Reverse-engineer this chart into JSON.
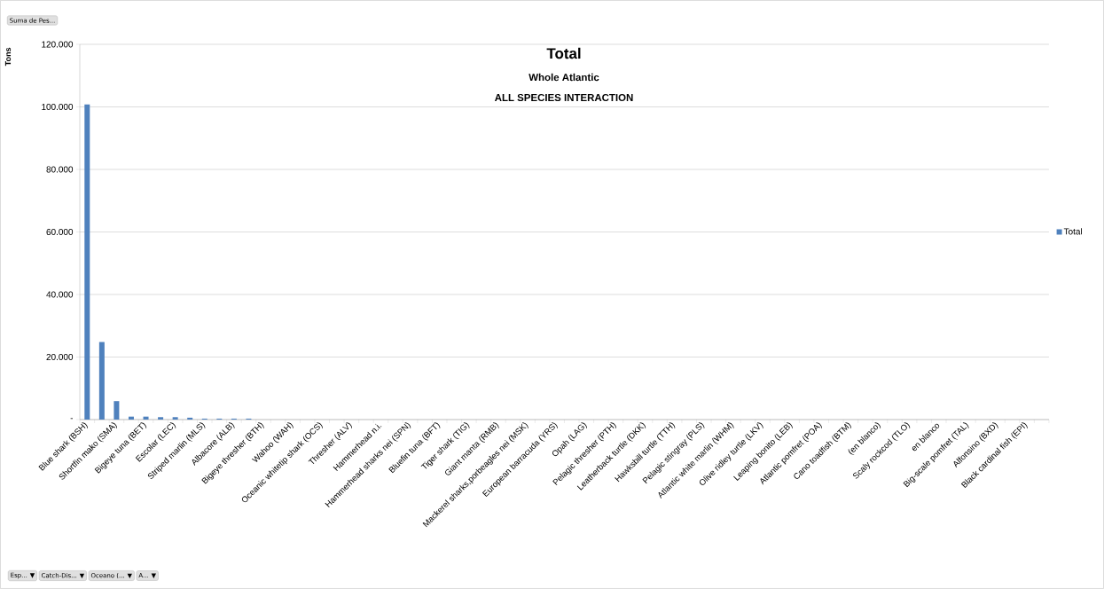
{
  "chart_data": {
    "type": "bar",
    "title": "Total",
    "subtitle": "Whole Atlantic",
    "ylabel": "Tons",
    "annotations": [
      "ALL SPECIES INTERACTION",
      "Suma de Pes...",
      "Esp... ▼",
      "Catch-Dis... ▼",
      "Oceano (... ▼",
      "A... ▼"
    ],
    "categories": [
      "Blue shark (BSH)",
      null,
      "Shortfin mako (SMA)",
      null,
      "Bigeye tuna (BET)",
      null,
      "Escolar (LEC)",
      null,
      "Striped marlin (MLS)",
      null,
      "Albacore (ALB)",
      null,
      "Bigeye thresher (BTH)",
      null,
      "Wahoo (WAH)",
      null,
      "Oceanic whitetip shark (OCS)",
      null,
      "Thresher (ALV)",
      null,
      "Hammerhead n.i.",
      null,
      "Hammerhead sharks nei (SPN)",
      null,
      "Bluefin tuna (BFT)",
      null,
      "Tiger shark (TIG)",
      null,
      "Giant manta (RMB)",
      null,
      "Mackerel sharks,porbeagles nei (MSK)",
      null,
      "European barracuda (YRS)",
      null,
      "Opah (LAG)",
      null,
      "Pelagic thresher (PTH)",
      null,
      "Leatherback turtle (DKK)",
      null,
      "Hawksbill turtle (TTH)",
      null,
      "Pelagic stingray (PLS)",
      null,
      "Atlantic white marlin (WHM)",
      null,
      "Olive ridley turtle (LKV)",
      null,
      "Leaping bonito (LEB)",
      null,
      "Atlantic pomfret (POA)",
      null,
      "Cano toadfish (BTM)",
      null,
      "(en blanco)",
      null,
      "Scaly rockcod (TLO)",
      null,
      "en blanco",
      null,
      "Big-scale pomfret (TAL)",
      null,
      "Alfonsino (BXD)",
      null,
      "Black cardinal fish (EPI)",
      null
    ],
    "series": [
      {
        "name": "Total",
        "color": "#4f81bd",
        "values": [
          100800,
          24800,
          5900,
          940,
          940,
          770,
          770,
          600,
          300,
          300,
          300,
          300,
          0,
          0,
          0,
          0,
          0,
          0,
          0,
          0,
          0,
          0,
          0,
          0,
          0,
          0,
          0,
          0,
          0,
          0,
          0,
          0,
          0,
          0,
          0,
          0,
          0,
          0,
          0,
          0,
          0,
          0,
          0,
          0,
          0,
          0,
          0,
          0,
          0,
          0,
          0,
          0,
          0,
          0,
          0,
          0,
          0,
          0,
          0,
          0,
          0,
          0,
          0,
          0,
          0,
          0
        ]
      }
    ],
    "ylim": [
      0,
      120000
    ],
    "yticks": [
      {
        "value": 0,
        "label": "-"
      },
      {
        "value": 20000,
        "label": "20.000"
      },
      {
        "value": 40000,
        "label": "40.000"
      },
      {
        "value": 60000,
        "label": "60.000"
      },
      {
        "value": 80000,
        "label": "80.000"
      },
      {
        "value": 100000,
        "label": "100.000"
      },
      {
        "value": 120000,
        "label": "120.000"
      }
    ],
    "grid": "y",
    "legend": "right"
  }
}
